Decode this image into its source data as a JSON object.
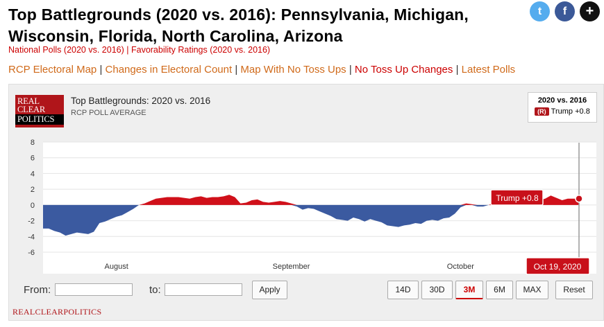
{
  "header": {
    "title": "Top Battlegrounds (2020 vs. 2016): Pennsylvania, Michigan, Wisconsin, Florida, North Carolina, Arizona",
    "subnav": [
      "National Polls (2020 vs. 2016)",
      "Favorability Ratings (2020 vs. 2016)"
    ],
    "subnav_sep": "|"
  },
  "nav": {
    "items": [
      "RCP Electoral Map",
      "Changes in Electoral Count",
      "Map With No Toss Ups",
      "No Toss Up Changes",
      "Latest Polls"
    ],
    "sep": "|"
  },
  "share": {
    "twitter": "t",
    "facebook": "f",
    "more": "+"
  },
  "logo": {
    "line1": "REAL",
    "line2": "CLEAR",
    "line3": "POLITICS"
  },
  "chart_header": {
    "title": "Top Battlegrounds: 2020 vs. 2016",
    "subtitle": "RCP POLL AVERAGE"
  },
  "legend": {
    "title": "2020 vs. 2016",
    "badge": "(R)",
    "entry": "Trump +0.8"
  },
  "controls": {
    "from_label": "From:",
    "to_label": "to:",
    "apply_label": "Apply",
    "ranges": [
      "14D",
      "30D",
      "3M",
      "6M",
      "MAX"
    ],
    "active_range": "3M",
    "reset_label": "Reset"
  },
  "footer": {
    "text": "REALCLEARPOLITICS"
  },
  "colors": {
    "positive": "#d0101a",
    "negative": "#3b5aa0",
    "brand": "#b0151a"
  },
  "chart_data": {
    "type": "area",
    "title": "Top Battlegrounds: 2020 vs. 2016",
    "ylim": [
      -6,
      8
    ],
    "yticks": [
      8,
      6,
      4,
      2,
      0,
      -2,
      -4,
      -6
    ],
    "x_tick_labels": [
      {
        "label": "August",
        "index": 13
      },
      {
        "label": "September",
        "index": 44
      },
      {
        "label": "October",
        "index": 74
      }
    ],
    "grid": true,
    "series": [
      {
        "values": [
          -3.0,
          -3.0,
          -3.3,
          -3.5,
          -3.9,
          -3.7,
          -3.5,
          -3.6,
          -3.7,
          -3.4,
          -2.3,
          -2.1,
          -1.8,
          -1.5,
          -1.3,
          -0.9,
          -0.5,
          0.0,
          0.2,
          0.5,
          0.8,
          0.9,
          1.0,
          1.0,
          1.0,
          0.9,
          0.8,
          1.0,
          1.1,
          0.9,
          1.0,
          1.0,
          1.1,
          1.3,
          1.0,
          0.2,
          0.3,
          0.6,
          0.7,
          0.4,
          0.3,
          0.4,
          0.5,
          0.4,
          0.2,
          -0.2,
          -0.6,
          -0.4,
          -0.5,
          -0.8,
          -1.1,
          -1.4,
          -1.8,
          -1.9,
          -2.0,
          -1.6,
          -1.8,
          -2.1,
          -1.8,
          -2.0,
          -2.2,
          -2.6,
          -2.7,
          -2.8,
          -2.6,
          -2.5,
          -2.3,
          -2.4,
          -2.0,
          -1.9,
          -2.0,
          -1.7,
          -1.6,
          -1.1,
          -0.3,
          0.2,
          0.1,
          -0.2,
          -0.2,
          0.0,
          0.3,
          0.4,
          0.5,
          0.7,
          0.9,
          1.0,
          0.9,
          0.7,
          0.6,
          0.8,
          1.2,
          0.9,
          0.6,
          0.8,
          0.8,
          0.8
        ],
        "last_label": "Trump +0.8",
        "last_date": "Oct 19, 2020"
      }
    ]
  }
}
